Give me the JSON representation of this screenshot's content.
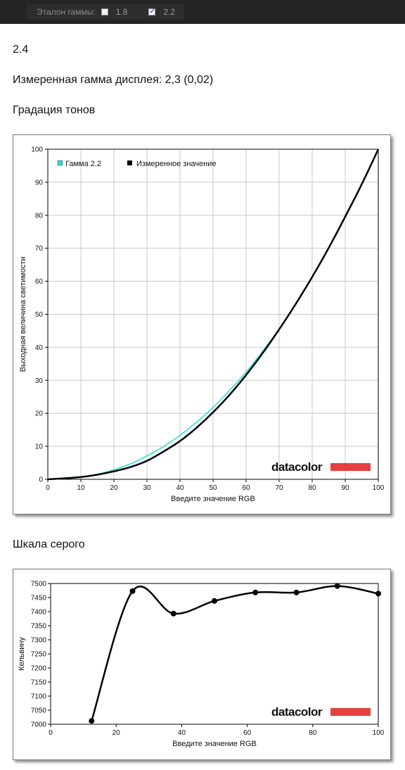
{
  "header": {
    "gamma_ref_label": "Эталон гаммы:",
    "options": [
      {
        "label": "1.8",
        "checked": false
      },
      {
        "label": "2.2",
        "checked": true
      }
    ]
  },
  "summary": {
    "value": "2.4",
    "measured": "Измеренная гамма дисплея: 2,3 (0,02)"
  },
  "sections": {
    "tone_title": "Градация тонов",
    "gray_title": "Шкала серого"
  },
  "brand": "datacolor",
  "colors": {
    "cyan": "#2ddcd8",
    "black": "#000000",
    "brand_red": "#e4403e",
    "grid": "#c8c8c8"
  },
  "chart_data": [
    {
      "type": "line",
      "title": "",
      "xlabel": "Введите значение RGB",
      "ylabel": "Выходная величина светимости",
      "xlim": [
        0,
        100
      ],
      "ylim": [
        0,
        100
      ],
      "x_ticks": [
        0,
        10,
        20,
        30,
        40,
        50,
        60,
        70,
        80,
        90,
        100
      ],
      "y_ticks": [
        0,
        10,
        20,
        30,
        40,
        50,
        60,
        70,
        80,
        90,
        100
      ],
      "grid": true,
      "legend": "top-left",
      "series": [
        {
          "name": "Гамма 2.2",
          "color": "#2ddcd8",
          "x": [
            0,
            5,
            10,
            15,
            20,
            25,
            30,
            35,
            40,
            45,
            50,
            55,
            60,
            65,
            70,
            75,
            80,
            85,
            90,
            95,
            100
          ],
          "y": [
            0,
            0.14,
            0.63,
            1.5,
            2.9,
            4.7,
            7.1,
            9.9,
            13.3,
            17.3,
            21.8,
            26.9,
            32.5,
            38.8,
            45.6,
            53.1,
            61.2,
            69.9,
            79.3,
            89.3,
            100
          ]
        },
        {
          "name": "Измеренное значение",
          "color": "#000000",
          "x": [
            0,
            5,
            10,
            15,
            20,
            25,
            30,
            35,
            40,
            45,
            50,
            55,
            60,
            65,
            70,
            75,
            80,
            85,
            90,
            95,
            100
          ],
          "y": [
            0,
            0.3,
            0.7,
            1.4,
            2.4,
            3.7,
            5.6,
            8.4,
            11.6,
            15.6,
            20.3,
            25.6,
            31.6,
            38.2,
            45.4,
            53.1,
            61.3,
            70.1,
            79.6,
            89.4,
            100
          ]
        }
      ]
    },
    {
      "type": "line",
      "title": "",
      "xlabel": "Введите значение RGB",
      "ylabel": "Кельвину",
      "xlim": [
        0,
        100
      ],
      "ylim": [
        7000,
        7500
      ],
      "x_ticks": [
        0,
        20,
        40,
        60,
        80,
        100
      ],
      "y_ticks": [
        7000,
        7050,
        7100,
        7150,
        7200,
        7250,
        7300,
        7350,
        7400,
        7450,
        7500
      ],
      "grid": false,
      "series": [
        {
          "x": [
            12.5,
            25,
            37.5,
            50,
            62.5,
            75,
            87.5,
            100
          ],
          "y": [
            7012,
            7473,
            7393,
            7438,
            7468,
            7468,
            7491,
            7464
          ]
        }
      ]
    }
  ]
}
